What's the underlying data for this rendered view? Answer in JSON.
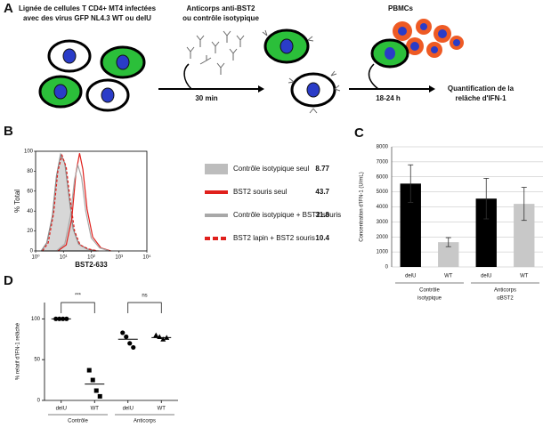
{
  "panel_a": {
    "panel": "A",
    "step1": [
      "Lignée de cellules T CD4+ MT4 infectées",
      "avec des virus GFP NL4.3 WT ou delU"
    ],
    "step2": [
      "Anticorps anti-BST2",
      "ou contrôle isotypique"
    ],
    "time1": "30 min",
    "step3": "PBMCs",
    "time2": "18-24 h",
    "step4": [
      "Quantification de la",
      "relâche d'IFN-1"
    ]
  },
  "chart_data": [
    {
      "type": "line",
      "panel": "B",
      "xlabel": "BST2-633",
      "ylabel": "% Total",
      "xlim": [
        0,
        4
      ],
      "ylim": [
        0,
        100
      ],
      "xticks": [
        {
          "value": 0,
          "label": "10⁰"
        },
        {
          "value": 1,
          "label": "10¹"
        },
        {
          "value": 2,
          "label": "10²"
        },
        {
          "value": 3,
          "label": "10³"
        },
        {
          "value": 4,
          "label": "10⁴"
        }
      ],
      "yticks": [
        0,
        20,
        40,
        60,
        80,
        100
      ],
      "series": [
        {
          "name": "Contrôle isotypique seul",
          "mfi": "8.77",
          "color": "#bdbdbd",
          "style": "fill",
          "x": [
            0.2,
            0.4,
            0.6,
            0.75,
            0.9,
            1.05,
            1.2,
            1.35,
            1.55,
            1.85,
            2.2
          ],
          "values": [
            0,
            8,
            35,
            75,
            97,
            88,
            55,
            22,
            7,
            2,
            0
          ]
        },
        {
          "name": "BST2 souris seul",
          "mfi": "43.7",
          "color": "#e0201c",
          "style": "line",
          "x": [
            0.8,
            1.1,
            1.3,
            1.45,
            1.58,
            1.7,
            1.85,
            2.05,
            2.35,
            2.7
          ],
          "values": [
            0,
            6,
            32,
            78,
            98,
            82,
            42,
            14,
            3,
            0
          ]
        },
        {
          "name": "Contrôle isotypique + BST2 souris",
          "mfi": "31.8",
          "color": "#a8a8a8",
          "style": "line",
          "x": [
            0.75,
            1.05,
            1.25,
            1.4,
            1.52,
            1.65,
            1.8,
            2.0,
            2.3,
            2.65
          ],
          "values": [
            0,
            7,
            35,
            72,
            86,
            74,
            40,
            13,
            3,
            0
          ]
        },
        {
          "name": "BST2 lapin + BST2 souris",
          "mfi": "10.4",
          "color": "#e0201c",
          "style": "dashed",
          "x": [
            0.25,
            0.45,
            0.65,
            0.8,
            0.95,
            1.1,
            1.25,
            1.4,
            1.6,
            1.9,
            2.25
          ],
          "values": [
            0,
            8,
            38,
            80,
            96,
            84,
            50,
            20,
            6,
            2,
            0
          ]
        }
      ]
    },
    {
      "type": "bar",
      "panel": "C",
      "ylabel": "Concentration d'IFN-1 (U/mL)",
      "categories": [
        "delU",
        "WT",
        "delU",
        "WT"
      ],
      "groups": [
        [
          "Contrôle",
          "isotypique"
        ],
        [
          "Anticorps",
          "αBST2"
        ]
      ],
      "values": [
        5550,
        1650,
        4550,
        4200
      ],
      "errors": [
        1250,
        300,
        1350,
        1100
      ],
      "colors": [
        "#000000",
        "#c8c8c8",
        "#000000",
        "#c8c8c8"
      ],
      "ylim": [
        0,
        8000
      ],
      "yticks": [
        0,
        1000,
        2000,
        3000,
        4000,
        5000,
        6000,
        7000,
        8000
      ],
      "grid": true
    },
    {
      "type": "dot",
      "panel": "D",
      "ylabel": "% relatif d'IFN-1 relâché",
      "categories": [
        "delU",
        "WT",
        "delU",
        "WT"
      ],
      "groups": [
        "Contrôle",
        "Anticorps"
      ],
      "markers": [
        "circle",
        "square",
        "circle",
        "triangle"
      ],
      "points": [
        [
          100,
          100,
          100,
          100
        ],
        [
          37,
          25,
          12,
          5
        ],
        [
          83,
          78,
          70,
          65
        ],
        [
          80,
          78,
          75,
          77
        ]
      ],
      "medians": [
        100,
        20,
        75,
        77
      ],
      "annotations": [
        "***",
        "ns"
      ],
      "ylim": [
        0,
        120
      ],
      "yticks": [
        0,
        50,
        100
      ]
    }
  ]
}
